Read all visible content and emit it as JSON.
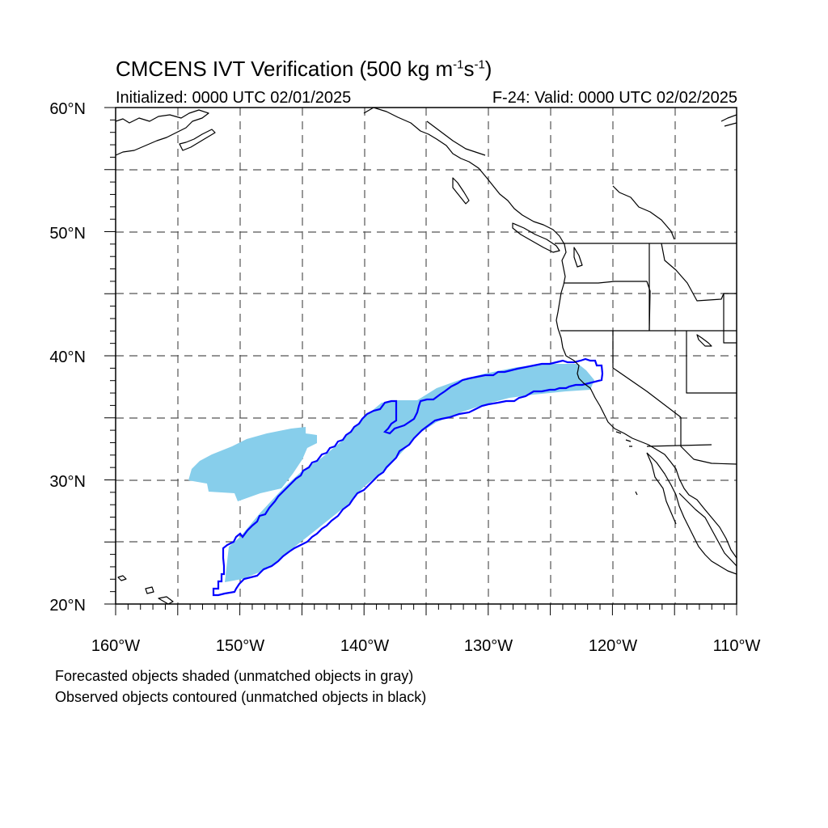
{
  "title": {
    "prefix": "CMCENS IVT Verification (500 kg m",
    "exp1": "-1",
    "middle": "s",
    "exp2": "-1",
    "suffix": ")"
  },
  "subtitle_left": "Initialized: 0000 UTC 02/01/2025",
  "subtitle_right": "F-24: Valid: 0000 UTC 02/02/2025",
  "lat_labels": [
    "20°N",
    "30°N",
    "40°N",
    "50°N",
    "60°N"
  ],
  "lon_labels": [
    "160°W",
    "150°W",
    "140°W",
    "130°W",
    "120°W",
    "110°W"
  ],
  "caption_line1": "Forecasted objects shaded (unmatched objects in gray)",
  "caption_line2": "Observed objects contoured (unmatched objects in black)",
  "colors": {
    "forecast_fill": "#87CEEB",
    "observed_contour": "#0000FF",
    "coastline": "#000000",
    "grid": "#555555"
  }
}
